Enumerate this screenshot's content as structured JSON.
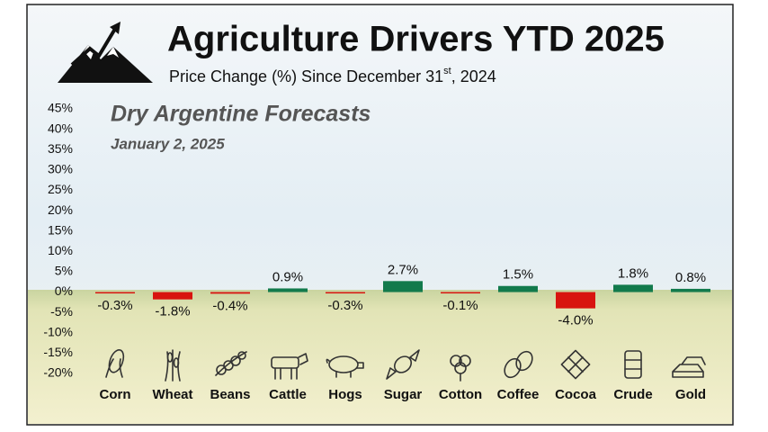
{
  "chart_data": {
    "type": "bar",
    "title": "Agriculture Drivers YTD 2025",
    "subtitle": [
      "Price Change (%) Since December 31",
      "st",
      ", 2024"
    ],
    "annotations": [
      "Dry Argentine Forecasts",
      "January 2, 2025"
    ],
    "categories": [
      "Corn",
      "Wheat",
      "Beans",
      "Cattle",
      "Hogs",
      "Sugar",
      "Cotton",
      "Coffee",
      "Cocoa",
      "Crude",
      "Gold"
    ],
    "values": [
      -0.3,
      -1.8,
      -0.4,
      0.9,
      -0.3,
      2.7,
      -0.1,
      1.5,
      -4.0,
      1.8,
      0.8
    ],
    "value_labels": [
      "-0.3%",
      "-1.8%",
      "-0.4%",
      "0.9%",
      "-0.3%",
      "2.7%",
      "-0.1%",
      "1.5%",
      "-4.0%",
      "1.8%",
      "0.8%"
    ],
    "positive_color": "#127a4c",
    "negative_color": "#d8140f",
    "ylim": [
      -20,
      45
    ],
    "yticks": [
      {
        "value": 45,
        "label": "45%"
      },
      {
        "value": 40,
        "label": "40%"
      },
      {
        "value": 35,
        "label": "35%"
      },
      {
        "value": 30,
        "label": "30%"
      },
      {
        "value": 25,
        "label": "25%"
      },
      {
        "value": 20,
        "label": "20%"
      },
      {
        "value": 15,
        "label": "15%"
      },
      {
        "value": 10,
        "label": "10%"
      },
      {
        "value": 5,
        "label": "5%"
      },
      {
        "value": 0,
        "label": "0%"
      },
      {
        "value": -5,
        "label": "-5%"
      },
      {
        "value": -10,
        "label": "-10%"
      },
      {
        "value": -15,
        "label": "-15%"
      },
      {
        "value": -20,
        "label": "-20%"
      }
    ],
    "grid": false
  }
}
